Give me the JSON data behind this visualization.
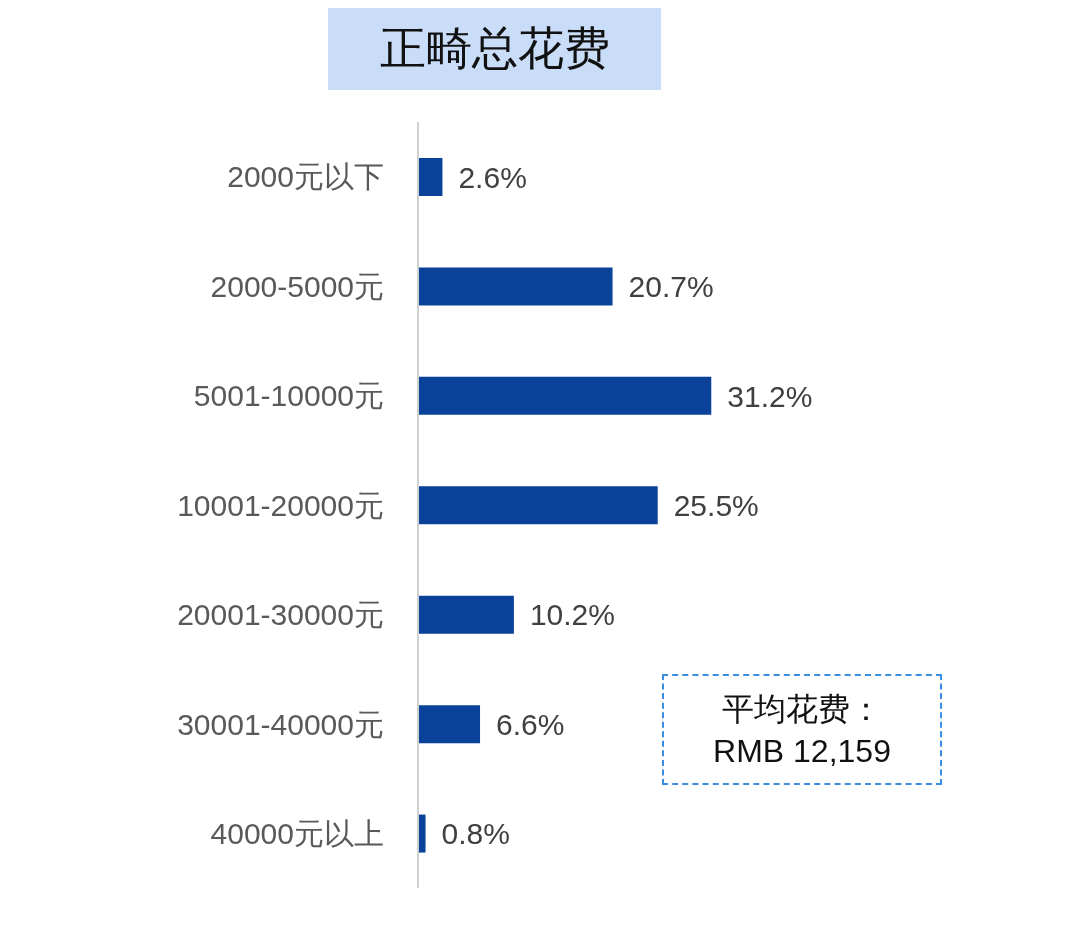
{
  "chart_data": {
    "type": "bar",
    "orientation": "horizontal",
    "title": "正畸总花费",
    "categories": [
      "2000元以下",
      "2000-5000元",
      "5001-10000元",
      "10001-20000元",
      "20001-30000元",
      "30001-40000元",
      "40000元以上"
    ],
    "values": [
      2.6,
      20.7,
      31.2,
      25.5,
      10.2,
      6.6,
      0.8
    ],
    "value_labels": [
      "2.6%",
      "20.7%",
      "31.2%",
      "25.5%",
      "10.2%",
      "6.6%",
      "0.8%"
    ],
    "color": "#0a4199",
    "annotations": [
      "平均花费：",
      "RMB 12,159"
    ]
  }
}
